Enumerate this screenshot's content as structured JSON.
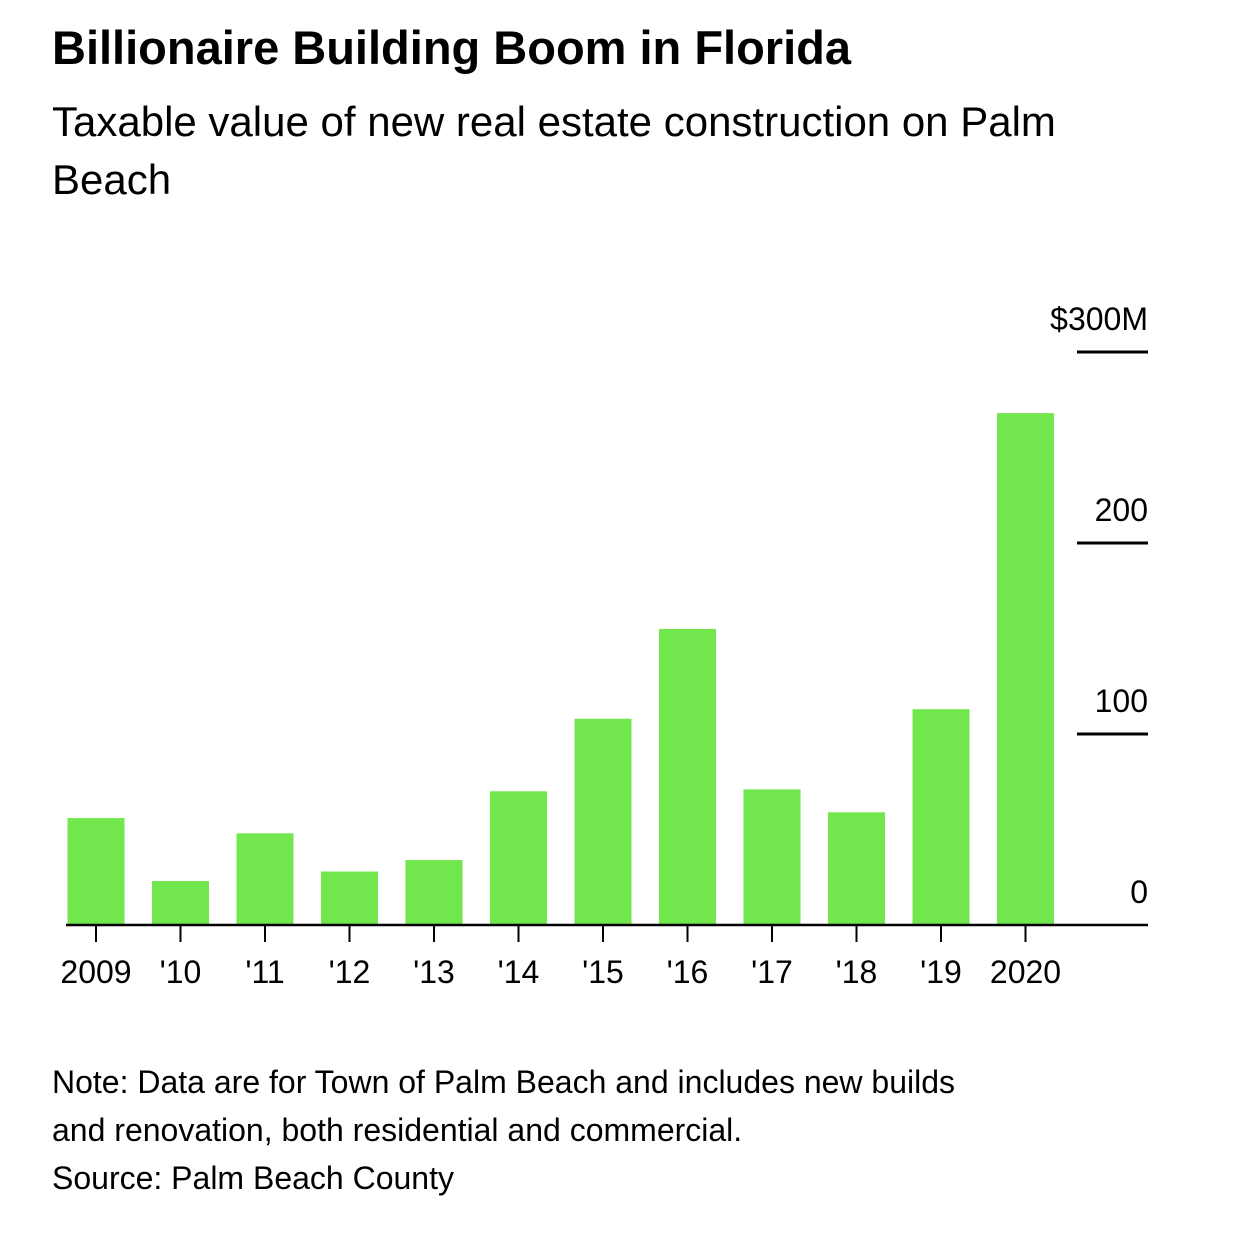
{
  "title": "Billionaire Building Boom in Florida",
  "subtitle": "Taxable value of new real estate construction on Palm Beach",
  "note": {
    "line1": "Note: Data are for Town of Palm Beach and includes new builds",
    "line2": "and renovation, both residential and commercial.",
    "source": "Source: Palm Beach County"
  },
  "colors": {
    "bar": "#72e64d",
    "axis": "#000000"
  },
  "chart_data": {
    "type": "bar",
    "title": "Billionaire Building Boom in Florida",
    "subtitle": "Taxable value of new real estate construction on Palm Beach",
    "categories": [
      "2009",
      "'10",
      "'11",
      "'12",
      "'13",
      "'14",
      "'15",
      "'16",
      "'17",
      "'18",
      "'19",
      "2020"
    ],
    "values": [
      56,
      23,
      48,
      28,
      34,
      70,
      108,
      155,
      71,
      59,
      113,
      268
    ],
    "ylim": [
      0,
      300
    ],
    "yticks": [
      0,
      100,
      200,
      300
    ],
    "ytick_labels": [
      "0",
      "100",
      "200",
      "$300M"
    ],
    "y_axis_side": "right",
    "grid": false
  }
}
